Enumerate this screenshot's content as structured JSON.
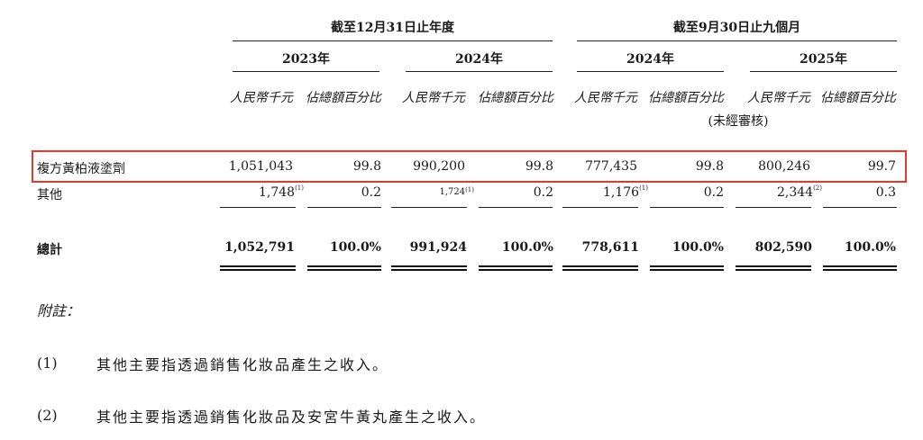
{
  "header": {
    "period_full_year": "截至12月31日止年度",
    "period_nine_months": "截至9月30日止九個月",
    "years": [
      "2023年",
      "2024年",
      "2024年",
      "2025年"
    ],
    "unit_rmb": "人民幣千元",
    "unit_pct": "佔總額百分比",
    "unaudited": "(未經審核)"
  },
  "rows": [
    {
      "label": "複方黃柏液塗劑",
      "values": [
        "1,051,043",
        "99.8",
        "990,200",
        "99.8",
        "777,435",
        "99.8",
        "800,246",
        "99.7"
      ]
    },
    {
      "label": "其他",
      "values": [
        "1,748",
        "0.2",
        "1,724",
        "0.2",
        "1,176",
        "0.2",
        "2,344",
        "0.3"
      ],
      "footnotes": [
        "(1)",
        "(1)",
        "(1)",
        "(2)"
      ]
    }
  ],
  "total": {
    "label": "總計",
    "values": [
      "1,052,791",
      "100.0%",
      "991,924",
      "100.0%",
      "778,611",
      "100.0%",
      "802,590",
      "100.0%"
    ]
  },
  "notes": {
    "title": "附註：",
    "items": [
      {
        "num": "(1)",
        "text": "其他主要指透過銷售化妝品產生之收入。"
      },
      {
        "num": "(2)",
        "text": "其他主要指透過銷售化妝品及安宮牛黃丸產生之收入。"
      }
    ]
  },
  "colors": {
    "highlight": "#e3382e",
    "text": "#1a1a1a"
  }
}
